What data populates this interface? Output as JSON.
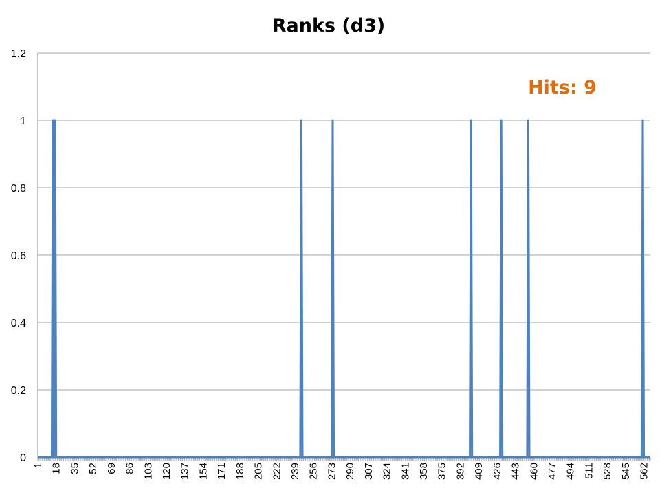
{
  "chart_data": {
    "type": "line",
    "title": "Ranks (d3)",
    "annotation": "Hits: 9",
    "xlabel": "",
    "ylabel": "",
    "x_range": [
      1,
      568
    ],
    "x_tick_labels": [
      "1",
      "18",
      "35",
      "52",
      "69",
      "86",
      "103",
      "120",
      "137",
      "154",
      "171",
      "188",
      "205",
      "222",
      "239",
      "256",
      "273",
      "290",
      "307",
      "324",
      "341",
      "358",
      "375",
      "392",
      "409",
      "426",
      "443",
      "460",
      "477",
      "494",
      "511",
      "528",
      "545",
      "562"
    ],
    "y_tick_labels": [
      "0",
      "0.2",
      "0.4",
      "0.6",
      "0.8",
      "1",
      "1.2"
    ],
    "ylim": [
      0,
      1.2
    ],
    "grid": true,
    "legend": "none",
    "series": [
      {
        "hits_x": [
          15,
          16,
          17,
          245,
          274,
          402,
          430,
          455,
          561
        ],
        "hit_value": 1,
        "baseline_value": 0
      }
    ],
    "colors": {
      "line": "#4F81BD",
      "annotation": "#E36C0A",
      "grid": "#A6A6A6"
    }
  }
}
